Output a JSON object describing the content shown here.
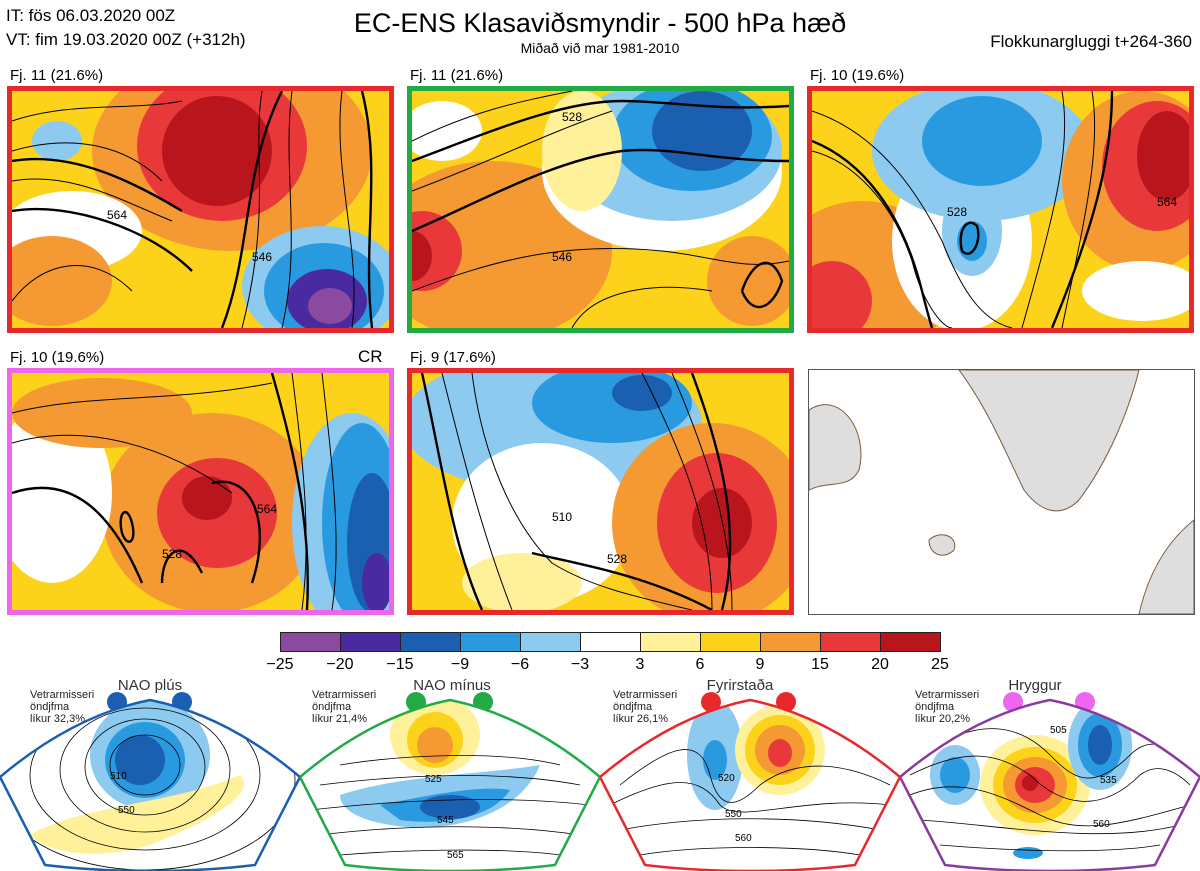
{
  "header": {
    "it_line": "IT: fös 06.03.2020 00Z",
    "vt_line": "VT: fim 19.03.2020 00Z  (+312h)",
    "title": "EC-ENS Klasaviðsmyndir - 500 hPa hæð",
    "subtitle": "Miðað við mar 1981-2010",
    "window": "Flokkunargluggi t+264-360"
  },
  "panels": [
    {
      "label": "Fj. 11 (21.6%)",
      "border": "#e8292c"
    },
    {
      "label": "Fj. 11 (21.6%)",
      "border": "#22aa44"
    },
    {
      "label": "Fj. 10 (19.6%)",
      "border": "#e8292c"
    },
    {
      "label": "Fj. 10 (19.6%)",
      "border": "#ee66ee",
      "tag": "CR"
    },
    {
      "label": "Fj. 9 (17.6%)",
      "border": "#e8292c"
    }
  ],
  "contour_labels": [
    "528",
    "546",
    "564",
    "510"
  ],
  "colorbar": {
    "colors": [
      "#8a4aa0",
      "#4a2aa0",
      "#1a5fb0",
      "#2a9ae0",
      "#8ccaf0",
      "#ffffff",
      "#fff09a",
      "#fcd21a",
      "#f59a32",
      "#e8383a",
      "#b8161c"
    ],
    "labels": [
      "−25",
      "−20",
      "−15",
      "−9",
      "−6",
      "−3",
      "3",
      "6",
      "9",
      "15",
      "20",
      "25"
    ]
  },
  "regimes": [
    {
      "name": "NAO plús",
      "color": "#1a5fb0",
      "note_1": "Vetrarmisseri",
      "note_2": "öndjfma",
      "note_3": "líkur 32,3%",
      "c1": "510",
      "c2": "550"
    },
    {
      "name": "NAO mínus",
      "color": "#22aa44",
      "note_1": "Vetrarmisseri",
      "note_2": "öndjfma",
      "note_3": "líkur 21,4%",
      "c1": "525",
      "c2": "545",
      "c3": "565"
    },
    {
      "name": "Fyrirstaða",
      "color": "#e8292c",
      "note_1": "Vetrarmisseri",
      "note_2": "öndjfma",
      "note_3": "líkur 26,1%",
      "c1": "520",
      "c2": "550",
      "c3": "560"
    },
    {
      "name": "Hryggur",
      "color": "#ee66ee",
      "note_1": "Vetrarmisseri",
      "note_2": "öndjfma",
      "note_3": "líkur 20,2%",
      "c1": "505",
      "c2": "535",
      "c3": "560"
    }
  ]
}
